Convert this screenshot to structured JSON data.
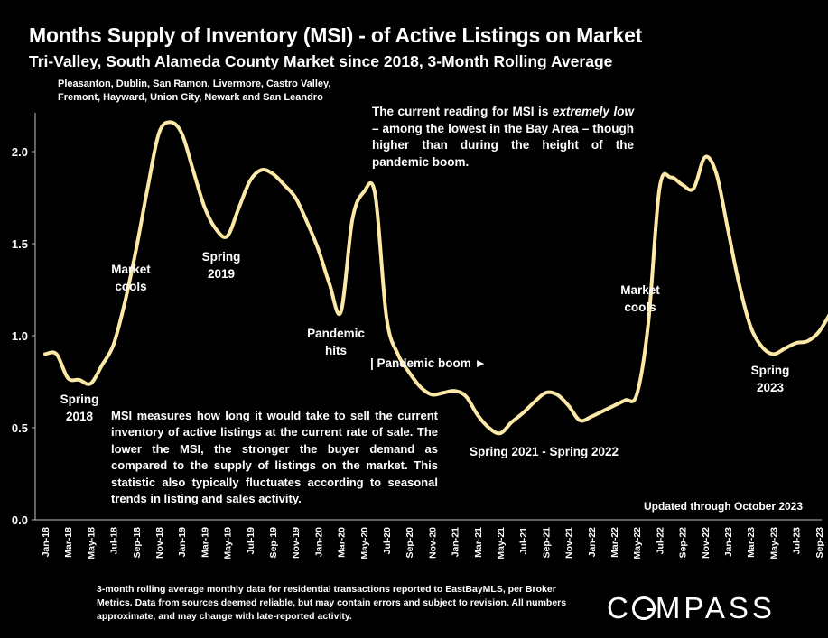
{
  "header": {
    "title": "Months Supply of Inventory (MSI) - of Active Listings on Market",
    "subtitle": "Tri-Valley, South Alameda County Market since 2018, 3-Month Rolling Average",
    "cities_line1": "Pleasanton, Dublin, San Ramon, Livermore, Castro Valley,",
    "cities_line2": "Fremont, Hayward, Union City, Newark and San Leandro"
  },
  "callout": {
    "pre": "The current reading for MSI is ",
    "emph": "extremely low",
    "post": " – among the lowest in the Bay Area – though higher than during the height of the pandemic boom."
  },
  "definition": "MSI measures how long it would take to sell the current inventory of active listings at the current rate of sale. The lower the MSI, the stronger the buyer demand as compared to the supply of listings on the market. This statistic also typically fluctuates according to seasonal trends in listing and sales activity.",
  "updated": "Updated through October 2023",
  "footnote": "3-month rolling average monthly data for residential transactions reported to EastBayMLS, per Broker Metrics. Data from sources deemed reliable, but may contain errors and subject to revision. All numbers approximate, and may change with late-reported activity.",
  "logo": {
    "pre": "C",
    "post": "MPASS"
  },
  "colors": {
    "background": "#000000",
    "line": "#FCE9A8",
    "text": "#FFFFFF",
    "axis": "#BFBFBF"
  },
  "chart_data": {
    "type": "line",
    "ylim": [
      0,
      2.3
    ],
    "yticks": [
      "0.0",
      "0.5",
      "1.0",
      "1.5",
      "2.0"
    ],
    "ytick_values": [
      0,
      0.5,
      1.0,
      1.5,
      2.0
    ],
    "grid": false,
    "xticklabels": [
      "Jan-18",
      "Mar-18",
      "May-18",
      "Jul-18",
      "Sep-18",
      "Nov-18",
      "Jan-19",
      "Mar-19",
      "May-19",
      "Jul-19",
      "Sep-19",
      "Nov-19",
      "Jan-20",
      "Mar-20",
      "May-20",
      "Jul-20",
      "Sep-20",
      "Nov-20",
      "Jan-21",
      "Mar-21",
      "May-21",
      "Jul-21",
      "Sep-21",
      "Nov-21",
      "Jan-22",
      "Mar-22",
      "May-22",
      "Jul-22",
      "Sep-22",
      "Nov-22",
      "Jan-23",
      "Mar-23",
      "May-23",
      "Jul-23",
      "Sep-23"
    ],
    "x": [
      "Jan-18",
      "Feb-18",
      "Mar-18",
      "Apr-18",
      "May-18",
      "Jun-18",
      "Jul-18",
      "Aug-18",
      "Sep-18",
      "Oct-18",
      "Nov-18",
      "Dec-18",
      "Jan-19",
      "Feb-19",
      "Mar-19",
      "Apr-19",
      "May-19",
      "Jun-19",
      "Jul-19",
      "Aug-19",
      "Sep-19",
      "Oct-19",
      "Nov-19",
      "Dec-19",
      "Jan-20",
      "Feb-20",
      "Mar-20",
      "Apr-20",
      "May-20",
      "Jun-20",
      "Jul-20",
      "Aug-20",
      "Sep-20",
      "Oct-20",
      "Nov-20",
      "Dec-20",
      "Jan-21",
      "Feb-21",
      "Mar-21",
      "Apr-21",
      "May-21",
      "Jun-21",
      "Jul-21",
      "Aug-21",
      "Sep-21",
      "Oct-21",
      "Nov-21",
      "Dec-21",
      "Jan-22",
      "Feb-22",
      "Mar-22",
      "Apr-22",
      "May-22",
      "Jun-22",
      "Jul-22",
      "Aug-22",
      "Sep-22",
      "Oct-22",
      "Nov-22",
      "Dec-22",
      "Jan-23",
      "Feb-23",
      "Mar-23",
      "Apr-23",
      "May-23",
      "Jun-23",
      "Jul-23",
      "Aug-23",
      "Sep-23",
      "Oct-23"
    ],
    "series": [
      {
        "values": [
          0.9,
          0.9,
          0.77,
          0.76,
          0.74,
          0.84,
          0.95,
          1.18,
          1.47,
          1.8,
          2.1,
          2.16,
          2.1,
          1.9,
          1.7,
          1.58,
          1.54,
          1.69,
          1.84,
          1.9,
          1.88,
          1.82,
          1.75,
          1.62,
          1.47,
          1.28,
          1.13,
          1.63,
          1.78,
          1.77,
          1.1,
          0.9,
          0.8,
          0.72,
          0.68,
          0.69,
          0.7,
          0.67,
          0.57,
          0.5,
          0.47,
          0.53,
          0.58,
          0.64,
          0.69,
          0.68,
          0.62,
          0.54,
          0.56,
          0.59,
          0.62,
          0.65,
          0.68,
          1.06,
          1.8,
          1.86,
          1.82,
          1.8,
          1.97,
          1.88,
          1.58,
          1.28,
          1.05,
          0.94,
          0.9,
          0.93,
          0.96,
          0.97,
          1.02,
          1.12
        ]
      }
    ],
    "annotations": [
      {
        "text": "Spring",
        "text2": "2018"
      },
      {
        "text": "Market",
        "text2": "cools"
      },
      {
        "text": "Spring",
        "text2": "2019"
      },
      {
        "text": "Pandemic",
        "text2": "hits"
      },
      {
        "text": "| Pandemic boom ►",
        "text2": ""
      },
      {
        "text": "Spring 2021 - Spring 2022",
        "text2": ""
      },
      {
        "text": "Market",
        "text2": "cools"
      },
      {
        "text": "Spring",
        "text2": "2023"
      }
    ]
  }
}
